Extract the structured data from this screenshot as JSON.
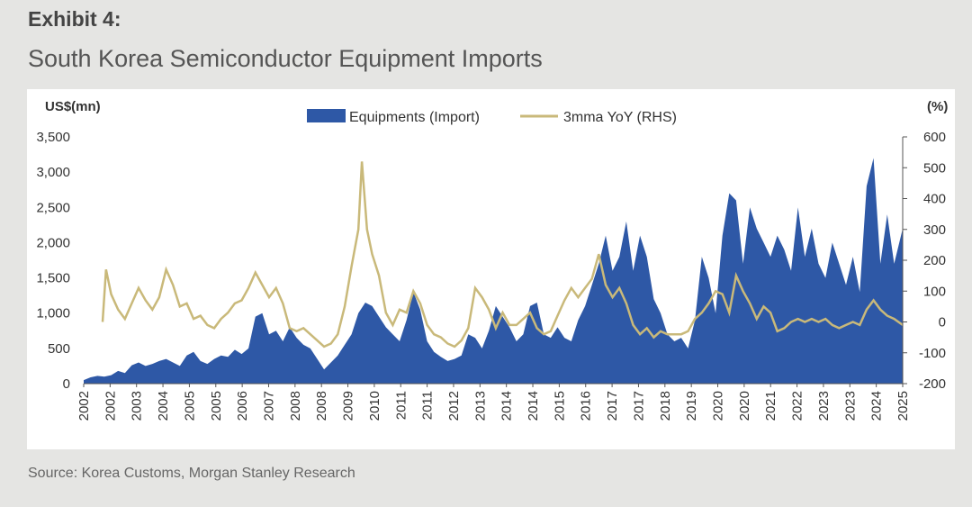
{
  "header": {
    "exhibit": "Exhibit 4:",
    "title": "South Korea Semiconductor Equipment Imports"
  },
  "footer": {
    "source": "Source: Korea Customs, Morgan Stanley Research"
  },
  "colors": {
    "area": "#2e58a6",
    "line": "#c9b97a",
    "axis": "#555555",
    "text": "#333333"
  },
  "chart_data": {
    "type": "area",
    "title": "South Korea Semiconductor Equipment Imports",
    "left_axis_label": "US$(mn)",
    "right_axis_label": "(%)",
    "ylim": [
      0,
      3500
    ],
    "y2lim": [
      -200,
      600
    ],
    "left_ticks": [
      "3,500",
      "3,000",
      "2,500",
      "2,000",
      "1,500",
      "1,000",
      "500",
      "0"
    ],
    "right_ticks": [
      "600",
      "500",
      "400",
      "300",
      "200",
      "100",
      "0",
      "-100",
      "-200"
    ],
    "x_tick_labels": [
      "2002",
      "2002",
      "2003",
      "2004",
      "2005",
      "2005",
      "2006",
      "2007",
      "2008",
      "2008",
      "2009",
      "2010",
      "2011",
      "2011",
      "2012",
      "2013",
      "2014",
      "2014",
      "2015",
      "2016",
      "2017",
      "2017",
      "2018",
      "2019",
      "2020",
      "2020",
      "2021",
      "2022",
      "2023",
      "2023",
      "2024",
      "2025"
    ],
    "x_range": [
      2002.0,
      2025.85
    ],
    "legend": [
      "Equipments (Import)",
      "3mma YoY (RHS)"
    ],
    "series": [
      {
        "name": "Equipments (Import)",
        "axis": "left",
        "x": [
          2002.0,
          2002.2,
          2002.4,
          2002.6,
          2002.8,
          2003.0,
          2003.2,
          2003.4,
          2003.6,
          2003.8,
          2004.0,
          2004.2,
          2004.4,
          2004.6,
          2004.8,
          2005.0,
          2005.2,
          2005.4,
          2005.6,
          2005.8,
          2006.0,
          2006.2,
          2006.4,
          2006.6,
          2006.8,
          2007.0,
          2007.2,
          2007.4,
          2007.6,
          2007.8,
          2008.0,
          2008.2,
          2008.4,
          2008.6,
          2008.8,
          2009.0,
          2009.2,
          2009.4,
          2009.6,
          2009.8,
          2010.0,
          2010.2,
          2010.4,
          2010.6,
          2010.8,
          2011.0,
          2011.2,
          2011.4,
          2011.6,
          2011.8,
          2012.0,
          2012.2,
          2012.4,
          2012.6,
          2012.8,
          2013.0,
          2013.2,
          2013.4,
          2013.6,
          2013.8,
          2014.0,
          2014.2,
          2014.4,
          2014.6,
          2014.8,
          2015.0,
          2015.2,
          2015.4,
          2015.6,
          2015.8,
          2016.0,
          2016.2,
          2016.4,
          2016.6,
          2016.8,
          2017.0,
          2017.2,
          2017.4,
          2017.6,
          2017.8,
          2018.0,
          2018.2,
          2018.4,
          2018.6,
          2018.8,
          2019.0,
          2019.2,
          2019.4,
          2019.6,
          2019.8,
          2020.0,
          2020.2,
          2020.4,
          2020.6,
          2020.8,
          2021.0,
          2021.2,
          2021.4,
          2021.6,
          2021.8,
          2022.0,
          2022.2,
          2022.4,
          2022.6,
          2022.8,
          2023.0,
          2023.2,
          2023.4,
          2023.6,
          2023.8,
          2024.0,
          2024.2,
          2024.4,
          2024.6,
          2024.8,
          2025.0,
          2025.2,
          2025.4,
          2025.6,
          2025.85
        ],
        "values": [
          50,
          90,
          110,
          100,
          120,
          180,
          150,
          260,
          300,
          250,
          280,
          320,
          350,
          300,
          250,
          400,
          450,
          320,
          280,
          350,
          400,
          380,
          480,
          420,
          500,
          950,
          1000,
          700,
          750,
          600,
          800,
          650,
          550,
          500,
          350,
          200,
          300,
          400,
          550,
          700,
          1000,
          1150,
          1100,
          950,
          800,
          700,
          600,
          900,
          1300,
          1050,
          600,
          450,
          380,
          320,
          350,
          400,
          700,
          650,
          500,
          750,
          1100,
          950,
          800,
          600,
          700,
          1100,
          1150,
          700,
          650,
          800,
          650,
          600,
          900,
          1100,
          1400,
          1700,
          2100,
          1600,
          1800,
          2300,
          1600,
          2100,
          1800,
          1200,
          1000,
          700,
          600,
          650,
          500,
          900,
          1800,
          1500,
          1000,
          2100,
          2700,
          2600,
          1700,
          2500,
          2200,
          2000,
          1800,
          2100,
          1900,
          1600,
          2500,
          1800,
          2200,
          1700,
          1500,
          2000,
          1700,
          1400,
          1800,
          1300,
          2800,
          3200,
          1700,
          2400,
          1700,
          2200
        ]
      },
      {
        "name": "3mma YoY (RHS)",
        "axis": "right",
        "x": [
          2002.55,
          2002.65,
          2002.8,
          2003.0,
          2003.2,
          2003.4,
          2003.6,
          2003.8,
          2004.0,
          2004.2,
          2004.4,
          2004.6,
          2004.8,
          2005.0,
          2005.2,
          2005.4,
          2005.6,
          2005.8,
          2006.0,
          2006.2,
          2006.4,
          2006.6,
          2006.8,
          2007.0,
          2007.2,
          2007.4,
          2007.6,
          2007.8,
          2008.0,
          2008.2,
          2008.4,
          2008.6,
          2008.8,
          2009.0,
          2009.2,
          2009.4,
          2009.6,
          2009.8,
          2010.0,
          2010.1,
          2010.25,
          2010.4,
          2010.6,
          2010.8,
          2011.0,
          2011.2,
          2011.4,
          2011.6,
          2011.8,
          2012.0,
          2012.2,
          2012.4,
          2012.6,
          2012.8,
          2013.0,
          2013.2,
          2013.4,
          2013.6,
          2013.8,
          2014.0,
          2014.2,
          2014.4,
          2014.6,
          2014.8,
          2015.0,
          2015.2,
          2015.4,
          2015.6,
          2015.8,
          2016.0,
          2016.2,
          2016.4,
          2016.6,
          2016.8,
          2017.0,
          2017.2,
          2017.4,
          2017.6,
          2017.8,
          2018.0,
          2018.2,
          2018.4,
          2018.6,
          2018.8,
          2019.0,
          2019.2,
          2019.4,
          2019.6,
          2019.8,
          2020.0,
          2020.2,
          2020.4,
          2020.6,
          2020.8,
          2021.0,
          2021.2,
          2021.4,
          2021.6,
          2021.8,
          2022.0,
          2022.2,
          2022.4,
          2022.6,
          2022.8,
          2023.0,
          2023.2,
          2023.4,
          2023.6,
          2023.8,
          2024.0,
          2024.2,
          2024.4,
          2024.6,
          2024.8,
          2025.0,
          2025.2,
          2025.4,
          2025.6,
          2025.85
        ],
        "values": [
          0,
          170,
          90,
          40,
          10,
          60,
          110,
          70,
          40,
          80,
          170,
          120,
          50,
          60,
          10,
          20,
          -10,
          -20,
          10,
          30,
          60,
          70,
          110,
          160,
          120,
          80,
          110,
          60,
          -20,
          -30,
          -20,
          -40,
          -60,
          -80,
          -70,
          -40,
          50,
          180,
          300,
          520,
          300,
          220,
          150,
          30,
          -10,
          40,
          30,
          100,
          60,
          -10,
          -40,
          -50,
          -70,
          -80,
          -60,
          -20,
          110,
          80,
          40,
          -20,
          30,
          -10,
          -10,
          10,
          30,
          -20,
          -40,
          -30,
          20,
          70,
          110,
          80,
          110,
          140,
          220,
          120,
          80,
          110,
          60,
          -10,
          -40,
          -20,
          -50,
          -30,
          -40,
          -40,
          -40,
          -30,
          10,
          30,
          60,
          100,
          90,
          30,
          150,
          100,
          60,
          10,
          50,
          30,
          -30,
          -20,
          0,
          10,
          0,
          10,
          0,
          10,
          -10,
          -20,
          -10,
          0,
          -10,
          40,
          70,
          40,
          20,
          10,
          -10
        ]
      }
    ]
  }
}
